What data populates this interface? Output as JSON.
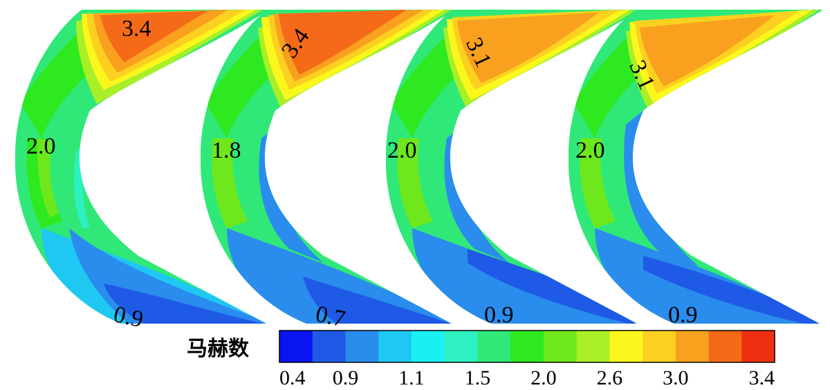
{
  "legend": {
    "title": "马赫数",
    "colors": [
      "#0a14f0",
      "#1e5ae6",
      "#2a8cec",
      "#1ec8f2",
      "#1af0f4",
      "#2ef0c0",
      "#30e878",
      "#2ee820",
      "#6ee81c",
      "#a8ef28",
      "#fbf71c",
      "#fbd020",
      "#f9a01e",
      "#f56a18",
      "#ee3010"
    ],
    "tick_labels": [
      "0.4",
      "0.9",
      "1.1",
      "1.5",
      "2.0",
      "2.6",
      "3.0",
      "3.4"
    ]
  },
  "passages": [
    {
      "labels": [
        "3.4",
        "2.0",
        "0.9"
      ]
    },
    {
      "labels": [
        "3.4",
        "1.8",
        "0.7"
      ]
    },
    {
      "labels": [
        "3.1",
        "2.0",
        "0.9"
      ]
    },
    {
      "labels": [
        "3.1",
        "2.0",
        "0.9"
      ]
    }
  ]
}
